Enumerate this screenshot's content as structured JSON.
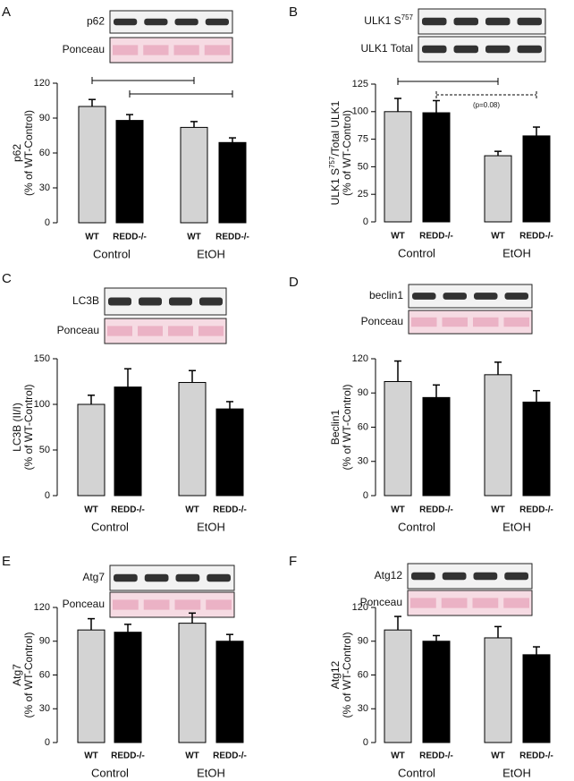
{
  "chart_data": [
    {
      "type": "bar",
      "panel": "A",
      "blots": [
        "p62",
        "Ponceau"
      ],
      "ylabel": [
        "p62",
        "(% of WT-Control)"
      ],
      "categories": [
        "WT",
        "REDD-/-",
        "WT",
        "REDD-/-"
      ],
      "groups": [
        "Control",
        "EtOH"
      ],
      "values": [
        100,
        88,
        82,
        69
      ],
      "errors": [
        6,
        5,
        5,
        4
      ],
      "colors": [
        "#d3d3d3",
        "#000000",
        "#d3d3d3",
        "#000000"
      ],
      "ylim": [
        0,
        120
      ],
      "yticks": [
        0,
        30,
        60,
        90,
        120
      ],
      "brackets": [
        {
          "from": 0,
          "to": 2,
          "dashed": false
        },
        {
          "from": 1,
          "to": 3,
          "dashed": false
        }
      ]
    },
    {
      "type": "bar",
      "panel": "B",
      "blots": [
        [
          {
            "text": "ULK1 S"
          },
          {
            "text": "757",
            "sup": true
          }
        ],
        "ULK1 Total"
      ],
      "ylabel": [
        [
          {
            "text": "ULK1 S"
          },
          {
            "text": "757",
            "sup": true
          },
          {
            "text": "/Total ULK1"
          }
        ],
        "(% of WT-Control)"
      ],
      "categories": [
        "WT",
        "REDD-/-",
        "WT",
        "REDD-/-"
      ],
      "groups": [
        "Control",
        "EtOH"
      ],
      "values": [
        100,
        99,
        60,
        78
      ],
      "errors": [
        12,
        11,
        4,
        8
      ],
      "colors": [
        "#d3d3d3",
        "#000000",
        "#d3d3d3",
        "#000000"
      ],
      "ylim": [
        0,
        125
      ],
      "yticks": [
        0,
        25,
        50,
        75,
        100,
        125
      ],
      "brackets": [
        {
          "from": 0,
          "to": 2,
          "dashed": false
        },
        {
          "from": 1,
          "to": 3,
          "dashed": true,
          "note": "(p=0.08)"
        }
      ]
    },
    {
      "type": "bar",
      "panel": "C",
      "blots": [
        "LC3B",
        "Ponceau"
      ],
      "ylabel": [
        "LC3B (II/I)",
        "(% of WT-Control)"
      ],
      "categories": [
        "WT",
        "REDD-/-",
        "WT",
        "REDD-/-"
      ],
      "groups": [
        "Control",
        "EtOH"
      ],
      "values": [
        100,
        119,
        124,
        95
      ],
      "errors": [
        10,
        20,
        13,
        8
      ],
      "colors": [
        "#d3d3d3",
        "#000000",
        "#d3d3d3",
        "#000000"
      ],
      "ylim": [
        0,
        150
      ],
      "yticks": [
        0,
        50,
        100,
        150
      ]
    },
    {
      "type": "bar",
      "panel": "D",
      "blots": [
        "beclin1",
        "Ponceau"
      ],
      "ylabel": [
        "Beclin1",
        "(% of WT-Control)"
      ],
      "categories": [
        "WT",
        "REDD-/-",
        "WT",
        "REDD-/-"
      ],
      "groups": [
        "Control",
        "EtOH"
      ],
      "values": [
        100,
        86,
        106,
        82
      ],
      "errors": [
        18,
        11,
        11,
        10
      ],
      "colors": [
        "#d3d3d3",
        "#000000",
        "#d3d3d3",
        "#000000"
      ],
      "ylim": [
        0,
        120
      ],
      "yticks": [
        0,
        30,
        60,
        90,
        120
      ]
    },
    {
      "type": "bar",
      "panel": "E",
      "blots": [
        "Atg7",
        "Ponceau"
      ],
      "ylabel": [
        "Atg7",
        "(% of WT-Control)"
      ],
      "categories": [
        "WT",
        "REDD-/-",
        "WT",
        "REDD-/-"
      ],
      "groups": [
        "Control",
        "EtOH"
      ],
      "values": [
        100,
        98,
        106,
        90
      ],
      "errors": [
        10,
        7,
        9,
        6
      ],
      "colors": [
        "#d3d3d3",
        "#000000",
        "#d3d3d3",
        "#000000"
      ],
      "ylim": [
        0,
        120
      ],
      "yticks": [
        0,
        30,
        60,
        90,
        120
      ]
    },
    {
      "type": "bar",
      "panel": "F",
      "blots": [
        "Atg12",
        "Ponceau"
      ],
      "ylabel": [
        "Atg12",
        "(% of WT-Control)"
      ],
      "categories": [
        "WT",
        "REDD-/-",
        "WT",
        "REDD-/-"
      ],
      "groups": [
        "Control",
        "EtOH"
      ],
      "values": [
        100,
        90,
        93,
        78
      ],
      "errors": [
        12,
        5,
        10,
        7
      ],
      "colors": [
        "#d3d3d3",
        "#000000",
        "#d3d3d3",
        "#000000"
      ],
      "ylim": [
        0,
        120
      ],
      "yticks": [
        0,
        30,
        60,
        90,
        120
      ]
    }
  ]
}
